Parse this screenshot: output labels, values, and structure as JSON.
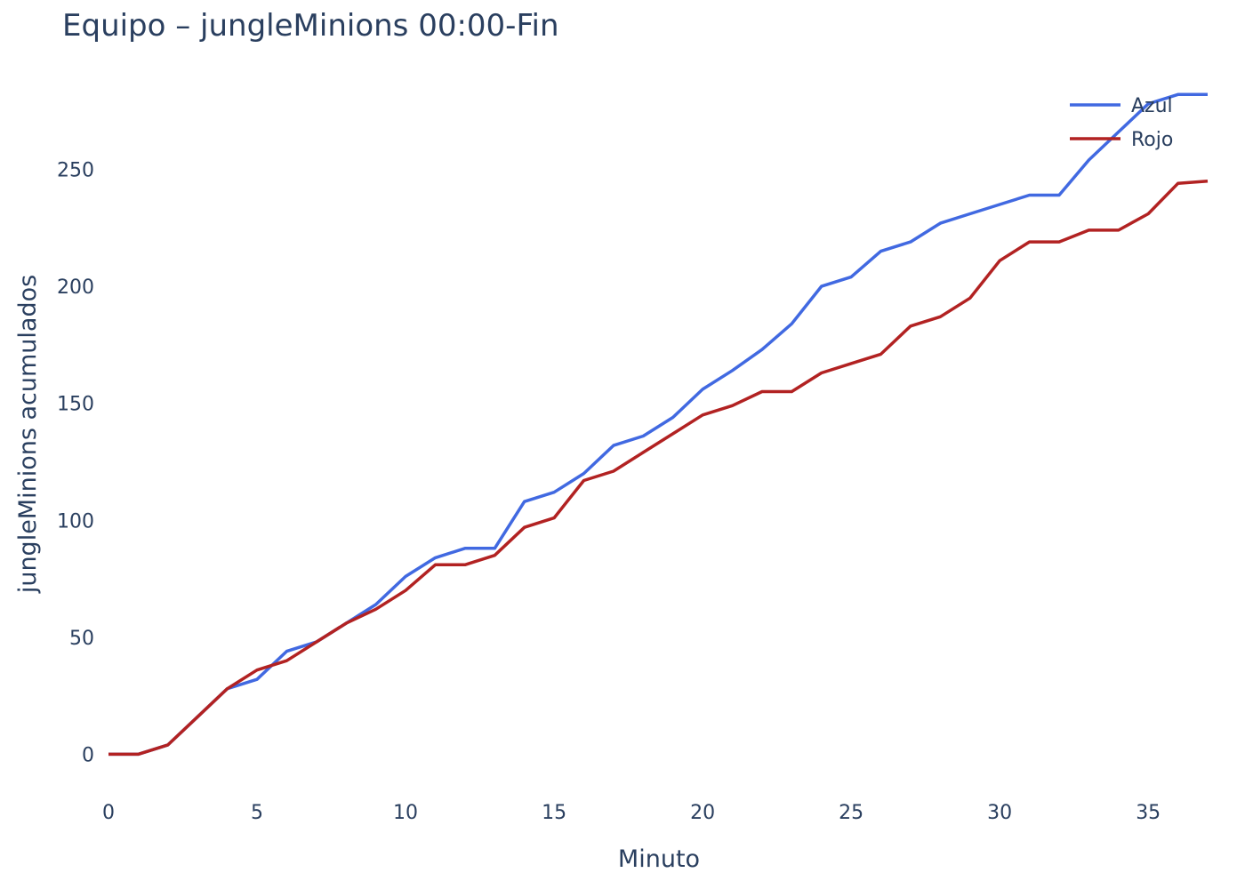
{
  "chart_data": {
    "type": "line",
    "title": "Equipo – jungleMinions 00:00-Fin",
    "xlabel": "Minuto",
    "ylabel": "jungleMinions acumulados",
    "xlim": [
      0,
      37
    ],
    "ylim": [
      -12,
      292
    ],
    "xticks": [
      0,
      5,
      10,
      15,
      20,
      25,
      30,
      35
    ],
    "yticks": [
      0,
      50,
      100,
      150,
      200,
      250
    ],
    "grid": false,
    "legend": "top-right",
    "x": [
      0,
      1,
      2,
      3,
      4,
      5,
      6,
      7,
      8,
      9,
      10,
      11,
      12,
      13,
      14,
      15,
      16,
      17,
      18,
      19,
      20,
      21,
      22,
      23,
      24,
      25,
      26,
      27,
      28,
      29,
      30,
      31,
      32,
      33,
      34,
      35,
      36,
      37
    ],
    "series": [
      {
        "name": "Azul",
        "color": "#4169e1",
        "values": [
          0,
          0,
          4,
          16,
          28,
          32,
          44,
          48,
          56,
          64,
          76,
          84,
          88,
          88,
          108,
          112,
          120,
          132,
          136,
          144,
          156,
          164,
          173,
          184,
          200,
          204,
          215,
          219,
          227,
          231,
          235,
          239,
          239,
          254,
          266,
          278,
          282,
          282
        ]
      },
      {
        "name": "Rojo",
        "color": "#b22222",
        "values": [
          0,
          0,
          4,
          16,
          28,
          36,
          40,
          48,
          56,
          62,
          70,
          81,
          81,
          85,
          97,
          101,
          117,
          121,
          129,
          137,
          145,
          149,
          155,
          155,
          163,
          167,
          171,
          183,
          187,
          195,
          211,
          219,
          219,
          224,
          224,
          231,
          244,
          245
        ]
      }
    ]
  }
}
